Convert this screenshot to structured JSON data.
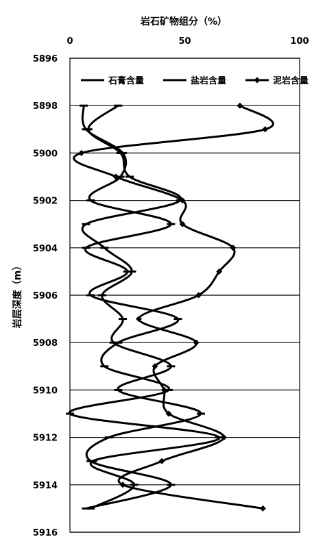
{
  "chart_data": {
    "type": "line",
    "title": "岩石矿物组分（%）",
    "xlabel": "",
    "ylabel": "岩层深度（m）",
    "xlim": [
      0,
      100
    ],
    "ylim": [
      5896,
      5916
    ],
    "y_inverted": true,
    "x_axis_position": "top",
    "x_ticks": [
      0,
      50,
      100
    ],
    "y_ticks": [
      5896,
      5898,
      5900,
      5902,
      5904,
      5906,
      5908,
      5910,
      5912,
      5914,
      5916
    ],
    "grid": "horizontal",
    "legend_position": "top",
    "series": [
      {
        "name": "石膏含量",
        "marker": "dash",
        "color": "#000000",
        "points": [
          [
            21,
            5898
          ],
          [
            8,
            5899
          ],
          [
            22,
            5900
          ],
          [
            26,
            5901
          ],
          [
            48,
            5902
          ],
          [
            7,
            5903
          ],
          [
            15,
            5904
          ],
          [
            27,
            5905
          ],
          [
            14,
            5906
          ],
          [
            23,
            5907
          ],
          [
            19,
            5908
          ],
          [
            44,
            5909
          ],
          [
            21,
            5910
          ],
          [
            57,
            5911
          ],
          [
            17,
            5912
          ],
          [
            9,
            5913
          ],
          [
            44,
            5914
          ],
          [
            7,
            5915
          ]
        ]
      },
      {
        "name": "盐岩含量",
        "marker": "dash",
        "color": "#000000",
        "points": [
          [
            6,
            5898
          ],
          [
            7,
            5899
          ],
          [
            23,
            5900
          ],
          [
            22,
            5901
          ],
          [
            9,
            5902
          ],
          [
            44,
            5903
          ],
          [
            7,
            5904
          ],
          [
            25,
            5905
          ],
          [
            9,
            5906
          ],
          [
            47,
            5907
          ],
          [
            21,
            5908
          ],
          [
            15,
            5909
          ],
          [
            43,
            5910
          ],
          [
            0,
            5911
          ],
          [
            65,
            5912
          ],
          [
            10,
            5913
          ],
          [
            28,
            5914
          ],
          [
            9,
            5915
          ]
        ]
      },
      {
        "name": "泥岩含量",
        "marker": "diamond",
        "color": "#000000",
        "points": [
          [
            74,
            5898
          ],
          [
            85,
            5899
          ],
          [
            5,
            5900
          ],
          [
            20,
            5901
          ],
          [
            49,
            5902
          ],
          [
            49,
            5903
          ],
          [
            71,
            5904
          ],
          [
            65,
            5905
          ],
          [
            56,
            5906
          ],
          [
            30,
            5907
          ],
          [
            55,
            5908
          ],
          [
            37,
            5909
          ],
          [
            41,
            5910
          ],
          [
            43,
            5911
          ],
          [
            67,
            5912
          ],
          [
            40,
            5913
          ],
          [
            23,
            5914
          ],
          [
            84,
            5915
          ]
        ]
      }
    ]
  }
}
